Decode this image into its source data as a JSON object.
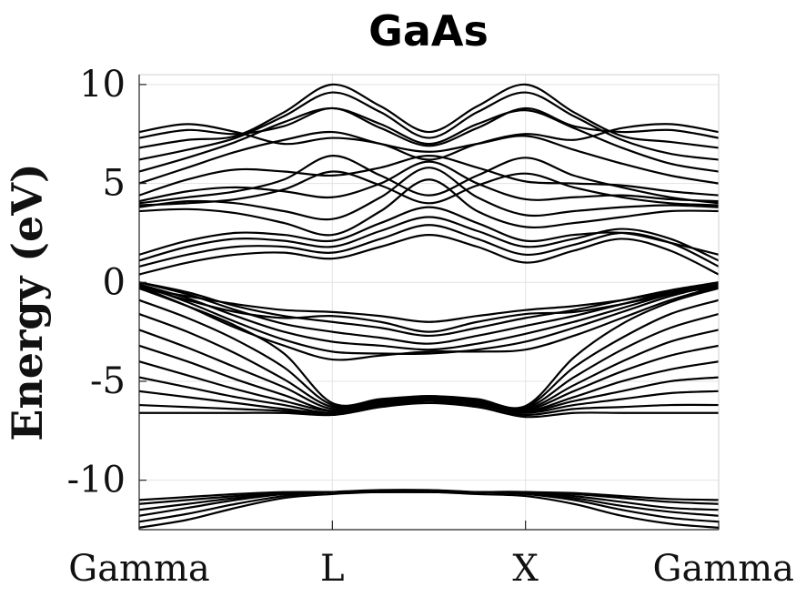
{
  "chart_data": {
    "type": "line",
    "title": "GaAs",
    "xlabel": "",
    "ylabel": "Energy (eV)",
    "xlim": [
      0,
      3
    ],
    "ylim": [
      -12.5,
      10.5
    ],
    "grid": true,
    "x_ticks": [
      {
        "x": 0,
        "label": "Gamma"
      },
      {
        "x": 1,
        "label": "L"
      },
      {
        "x": 2,
        "label": "X"
      },
      {
        "x": 3,
        "label": "Gamma"
      }
    ],
    "y_ticks": [
      {
        "y": -10,
        "label": "-10"
      },
      {
        "y": -5,
        "label": "-5"
      },
      {
        "y": 0,
        "label": "0"
      },
      {
        "y": 5,
        "label": "5"
      },
      {
        "y": 10,
        "label": "10"
      }
    ],
    "line_color": "#000000",
    "x": [
      0,
      0.25,
      0.5,
      0.75,
      1,
      1.25,
      1.5,
      1.75,
      2,
      2.25,
      2.5,
      2.75,
      3
    ],
    "series": [
      {
        "values": [
          -12.4,
          -12.0,
          -11.4,
          -10.9,
          -10.7,
          -10.6,
          -10.6,
          -10.7,
          -10.8,
          -11.2,
          -11.8,
          -12.2,
          -12.4
        ]
      },
      {
        "values": [
          -12.1,
          -11.7,
          -11.2,
          -10.8,
          -10.6,
          -10.5,
          -10.5,
          -10.6,
          -10.7,
          -11.0,
          -11.5,
          -11.9,
          -12.1
        ]
      },
      {
        "values": [
          -11.8,
          -11.4,
          -11.0,
          -10.7,
          -10.6,
          -10.55,
          -10.55,
          -10.6,
          -10.65,
          -10.9,
          -11.3,
          -11.6,
          -11.8
        ]
      },
      {
        "values": [
          -11.5,
          -11.2,
          -10.9,
          -10.7,
          -10.6,
          -10.6,
          -10.6,
          -10.6,
          -10.6,
          -10.8,
          -11.1,
          -11.4,
          -11.5
        ]
      },
      {
        "values": [
          -11.2,
          -11.0,
          -10.8,
          -10.65,
          -10.6,
          -10.6,
          -10.6,
          -10.6,
          -10.6,
          -10.7,
          -10.9,
          -11.1,
          -11.2
        ]
      },
      {
        "values": [
          -11.0,
          -10.85,
          -10.7,
          -10.6,
          -10.6,
          -10.6,
          -10.6,
          -10.6,
          -10.6,
          -10.65,
          -10.8,
          -10.95,
          -11.0
        ]
      },
      {
        "values": [
          -6.6,
          -6.6,
          -6.6,
          -6.6,
          -6.7,
          -6.3,
          -6.1,
          -6.3,
          -6.8,
          -6.6,
          -6.6,
          -6.6,
          -6.6
        ]
      },
      {
        "values": [
          -6.2,
          -6.3,
          -6.4,
          -6.5,
          -6.7,
          -6.3,
          -6.0,
          -6.3,
          -6.7,
          -6.4,
          -6.3,
          -6.2,
          -6.2
        ]
      },
      {
        "values": [
          -5.5,
          -5.8,
          -6.1,
          -6.4,
          -6.6,
          -6.2,
          -5.95,
          -6.2,
          -6.6,
          -6.2,
          -5.9,
          -5.6,
          -5.5
        ]
      },
      {
        "values": [
          -4.8,
          -5.3,
          -5.8,
          -6.2,
          -6.6,
          -6.2,
          -5.9,
          -6.2,
          -6.55,
          -6.0,
          -5.5,
          -5.0,
          -4.8
        ]
      },
      {
        "values": [
          -4.0,
          -4.7,
          -5.4,
          -6.0,
          -6.5,
          -6.1,
          -5.9,
          -6.1,
          -6.5,
          -5.8,
          -5.0,
          -4.4,
          -4.0
        ]
      },
      {
        "values": [
          -3.2,
          -4.0,
          -4.9,
          -5.7,
          -6.5,
          -6.1,
          -5.85,
          -6.1,
          -6.45,
          -5.5,
          -4.5,
          -3.7,
          -3.2
        ]
      },
      {
        "values": [
          -2.4,
          -3.3,
          -4.3,
          -5.3,
          -6.4,
          -6.0,
          -5.8,
          -6.0,
          -6.4,
          -5.2,
          -4.0,
          -3.0,
          -2.4
        ]
      },
      {
        "values": [
          -1.6,
          -2.5,
          -3.6,
          -4.9,
          -6.3,
          -6.0,
          -5.8,
          -6.0,
          -6.35,
          -4.8,
          -3.4,
          -2.3,
          -1.6
        ]
      },
      {
        "values": [
          -0.9,
          -1.8,
          -2.9,
          -4.3,
          -6.2,
          -5.95,
          -5.75,
          -5.95,
          -6.3,
          -4.3,
          -2.8,
          -1.6,
          -0.9
        ]
      },
      {
        "values": [
          -0.3,
          -1.2,
          -2.2,
          -3.6,
          -6.1,
          -5.9,
          -5.75,
          -5.9,
          -6.25,
          -3.8,
          -2.1,
          -1.0,
          -0.3
        ]
      },
      {
        "values": [
          0,
          -0.5,
          -1.2,
          -1.7,
          -2.0,
          -2.3,
          -2.7,
          -2.3,
          -1.8,
          -1.4,
          -0.9,
          -0.4,
          0
        ]
      },
      {
        "values": [
          0,
          -0.6,
          -1.4,
          -2.1,
          -2.5,
          -2.8,
          -3.1,
          -2.7,
          -2.2,
          -1.7,
          -1.1,
          -0.5,
          0
        ]
      },
      {
        "values": [
          -0.1,
          -0.8,
          -1.7,
          -2.5,
          -3.0,
          -3.2,
          -3.4,
          -3.1,
          -2.6,
          -2.0,
          -1.3,
          -0.6,
          -0.1
        ]
      },
      {
        "values": [
          -0.1,
          -1.0,
          -2.0,
          -2.9,
          -3.5,
          -3.6,
          -3.6,
          -3.4,
          -3.0,
          -2.3,
          -1.5,
          -0.7,
          -0.1
        ]
      },
      {
        "values": [
          -0.2,
          -1.2,
          -2.3,
          -3.2,
          -3.9,
          -3.7,
          -3.5,
          -3.5,
          -3.4,
          -2.7,
          -1.8,
          -0.9,
          -0.2
        ]
      },
      {
        "values": [
          -0.2,
          -0.9,
          -1.5,
          -1.8,
          -1.7,
          -2.0,
          -2.5,
          -2.0,
          -1.6,
          -1.5,
          -1.1,
          -0.6,
          -0.2
        ]
      },
      {
        "values": [
          -0.3,
          -0.7,
          -1.1,
          -1.4,
          -1.5,
          -1.7,
          -2.0,
          -1.7,
          -1.4,
          -1.2,
          -0.9,
          -0.5,
          -0.3
        ]
      },
      {
        "values": [
          0.4,
          1.0,
          1.4,
          1.5,
          1.2,
          1.8,
          2.4,
          1.8,
          1.0,
          1.6,
          2.2,
          1.6,
          0.4
        ]
      },
      {
        "values": [
          0.8,
          1.4,
          1.8,
          1.8,
          1.5,
          2.2,
          2.9,
          2.2,
          1.4,
          1.9,
          2.5,
          2.0,
          0.8
        ]
      },
      {
        "values": [
          1.1,
          1.8,
          2.2,
          2.1,
          1.8,
          2.6,
          3.3,
          2.6,
          1.8,
          2.2,
          2.7,
          2.2,
          1.1
        ]
      },
      {
        "values": [
          1.4,
          2.1,
          2.5,
          2.4,
          2.1,
          3.0,
          3.8,
          3.0,
          2.1,
          2.4,
          2.5,
          2.0,
          1.4
        ]
      },
      {
        "values": [
          3.6,
          3.7,
          3.5,
          3.0,
          2.4,
          3.6,
          5.2,
          3.6,
          2.8,
          3.0,
          3.3,
          3.6,
          3.6
        ]
      },
      {
        "values": [
          3.8,
          4.1,
          4.0,
          3.6,
          3.2,
          4.3,
          5.8,
          4.3,
          3.4,
          3.6,
          3.8,
          3.9,
          3.8
        ]
      },
      {
        "values": [
          4.1,
          4.6,
          4.8,
          4.6,
          4.3,
          5.0,
          6.1,
          5.0,
          4.2,
          4.3,
          4.4,
          4.2,
          4.1
        ]
      },
      {
        "values": [
          4.4,
          5.2,
          5.7,
          5.6,
          5.4,
          5.8,
          6.4,
          5.8,
          5.1,
          5.0,
          4.9,
          4.6,
          4.4
        ]
      },
      {
        "values": [
          5.0,
          5.8,
          6.6,
          7.2,
          7.6,
          7.0,
          6.6,
          7.0,
          7.4,
          6.7,
          6.0,
          5.4,
          5.0
        ]
      },
      {
        "values": [
          5.6,
          6.3,
          7.1,
          8.1,
          8.8,
          8.0,
          7.0,
          8.0,
          8.7,
          7.8,
          6.8,
          6.0,
          5.6
        ]
      },
      {
        "values": [
          6.2,
          6.7,
          7.3,
          8.4,
          9.6,
          8.6,
          7.3,
          8.6,
          9.6,
          8.4,
          7.2,
          6.5,
          6.2
        ]
      },
      {
        "values": [
          6.8,
          7.2,
          7.4,
          8.6,
          10.0,
          8.9,
          7.6,
          8.9,
          10.0,
          8.6,
          7.4,
          7.1,
          6.8
        ]
      },
      {
        "values": [
          7.3,
          7.7,
          7.5,
          7.9,
          8.8,
          7.8,
          6.9,
          7.8,
          8.8,
          7.9,
          7.6,
          7.7,
          7.3
        ]
      },
      {
        "values": [
          7.6,
          8.0,
          7.6,
          7.0,
          7.3,
          7.0,
          6.2,
          7.0,
          7.5,
          7.2,
          7.8,
          8.0,
          7.6
        ]
      },
      {
        "values": [
          4.0,
          4.3,
          4.6,
          5.2,
          6.4,
          5.4,
          4.4,
          5.4,
          6.3,
          5.4,
          4.8,
          4.3,
          4.0
        ]
      },
      {
        "values": [
          3.9,
          4.0,
          4.2,
          4.7,
          5.6,
          4.9,
          4.0,
          4.9,
          5.5,
          4.8,
          4.3,
          4.0,
          3.9
        ]
      }
    ]
  }
}
